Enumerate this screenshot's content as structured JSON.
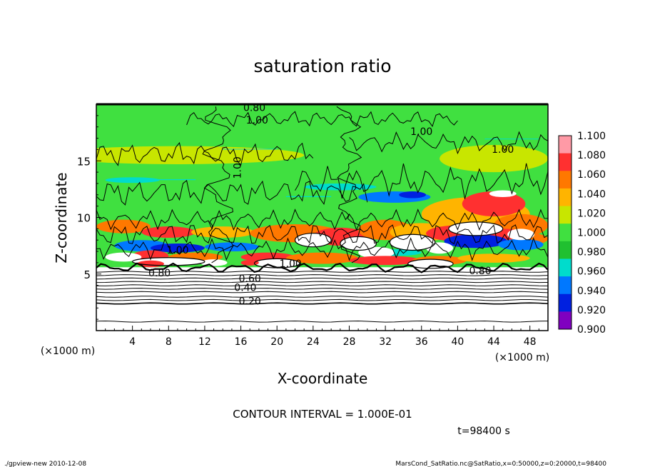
{
  "chart_data": {
    "type": "heatmap",
    "title": "saturation ratio",
    "xlabel": "X-coordinate",
    "ylabel": "Z-coordinate",
    "x_unit": "(×1000 m)",
    "y_unit": "(×1000 m)",
    "xlim": [
      0,
      50
    ],
    "ylim": [
      0,
      20
    ],
    "x_ticks": [
      "4",
      "8",
      "12",
      "16",
      "20",
      "24",
      "28",
      "32",
      "36",
      "40",
      "44",
      "48"
    ],
    "y_ticks": [
      "5",
      "10",
      "15"
    ],
    "colorbar": {
      "labels": [
        "1.100",
        "1.080",
        "1.060",
        "1.040",
        "1.020",
        "1.000",
        "0.980",
        "0.960",
        "0.940",
        "0.920",
        "0.900"
      ],
      "colors": [
        "#ff9aa6",
        "#ff3030",
        "#ff7800",
        "#ffb400",
        "#c8e600",
        "#40e040",
        "#20c030",
        "#00dccc",
        "#0078ff",
        "#0020e0",
        "#8000c0"
      ]
    },
    "contour_labels": [
      "0.80",
      "1.00",
      "1.00",
      "1.00",
      "1.00",
      "1.00",
      "1.00",
      "0.80",
      "0.80",
      "0.60",
      "0.40",
      "0.20"
    ],
    "contour_interval_text": "CONTOUR INTERVAL = 1.000E-01",
    "time_text": "t=98400 s"
  },
  "footer": {
    "left": "./gpview-new  2010-12-08",
    "right": "MarsCond_SatRatio.nc@SatRatio,x=0:50000,z=0:20000,t=98400"
  }
}
